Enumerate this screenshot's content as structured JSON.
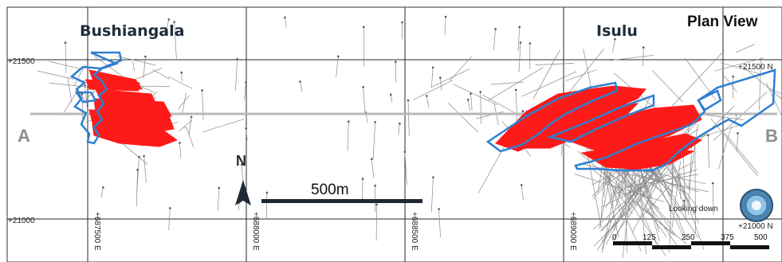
{
  "title": "Plan View",
  "zones": [
    {
      "name": "Bushiangala"
    },
    {
      "name": "Isulu"
    }
  ],
  "section": {
    "start_label": "A",
    "end_label": "B"
  },
  "north_arrow": {
    "label": "N"
  },
  "scale_bar": {
    "label": "500m"
  },
  "grid": {
    "northing_left": [
      "+21500",
      "+21000"
    ],
    "northing_right": [
      "+21500 N",
      "+21000 N"
    ],
    "easting": [
      "+687500 E",
      "+688000 E",
      "+688500 E",
      "+689000 E"
    ]
  },
  "view_widget": {
    "label": "Looking down"
  },
  "scale_ticks": [
    "0",
    "125",
    "250",
    "375",
    "500"
  ],
  "colors": {
    "mineralization": "#ff1a1a",
    "zone_outline": "#2f7fd0",
    "section_line": "#b8b8b8",
    "grid": "#2a2a2a"
  }
}
